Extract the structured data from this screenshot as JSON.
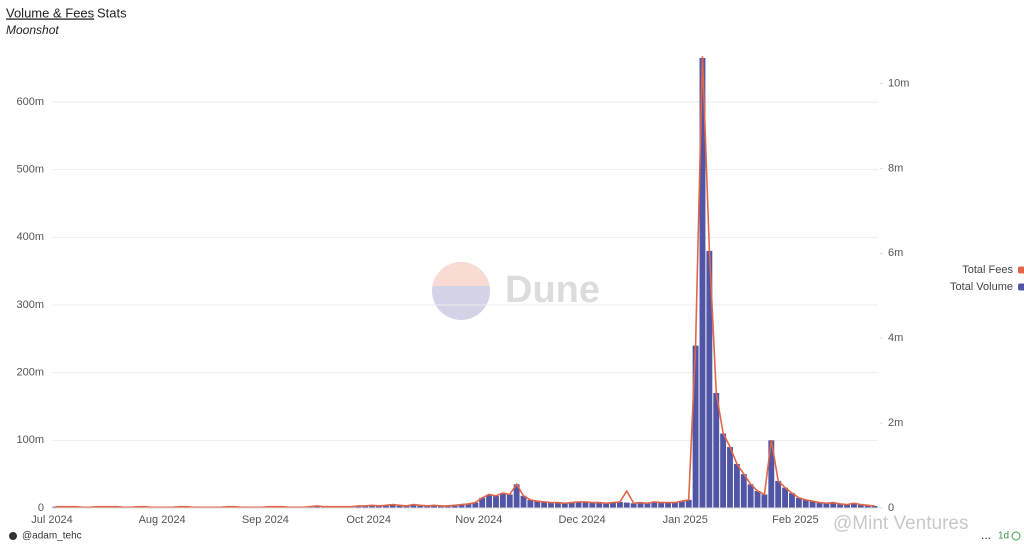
{
  "tabs": [
    "Volume & Fees",
    "Stats"
  ],
  "footer": {
    "author": "@adam_tehc",
    "menu": "...",
    "interval": "1d"
  },
  "watermarks": [
    "Dune",
    "@Mint Ventures"
  ],
  "chart_data": {
    "type": "combo",
    "subtitle": "Moonshot",
    "categories": [
      "Jul 2024",
      null,
      null,
      null,
      null,
      null,
      null,
      null,
      null,
      null,
      null,
      null,
      null,
      null,
      null,
      null,
      "Aug 2024",
      null,
      null,
      null,
      null,
      null,
      null,
      null,
      null,
      null,
      null,
      null,
      null,
      null,
      null,
      "Sep 2024",
      null,
      null,
      null,
      null,
      null,
      null,
      null,
      null,
      null,
      null,
      null,
      null,
      null,
      null,
      "Oct 2024",
      null,
      null,
      null,
      null,
      null,
      null,
      null,
      null,
      null,
      null,
      null,
      null,
      null,
      null,
      null,
      "Nov 2024",
      null,
      null,
      null,
      null,
      null,
      null,
      null,
      null,
      null,
      null,
      null,
      null,
      null,
      null,
      "Dec 2024",
      null,
      null,
      null,
      null,
      null,
      null,
      null,
      null,
      null,
      null,
      null,
      null,
      null,
      null,
      "Jan 2025",
      null,
      null,
      null,
      null,
      null,
      null,
      null,
      null,
      null,
      null,
      null,
      null,
      null,
      null,
      null,
      "Feb 2025",
      null,
      null,
      null,
      null,
      null,
      null,
      null,
      null,
      null,
      null,
      null
    ],
    "series": [
      {
        "name": "Total Fees",
        "type": "line",
        "axis": "y2",
        "color": "#e0664a",
        "values": [
          32000,
          32000,
          32000,
          32000,
          16000,
          16000,
          32000,
          32000,
          32000,
          32000,
          16000,
          16000,
          32000,
          32000,
          16000,
          16000,
          16000,
          16000,
          32000,
          32000,
          16000,
          16000,
          16000,
          16000,
          16000,
          32000,
          32000,
          16000,
          16000,
          16000,
          16000,
          32000,
          32000,
          32000,
          16000,
          16000,
          16000,
          32000,
          48000,
          32000,
          32000,
          32000,
          32000,
          32000,
          48000,
          48000,
          64000,
          48000,
          64000,
          80000,
          64000,
          48000,
          80000,
          64000,
          48000,
          64000,
          48000,
          48000,
          64000,
          80000,
          96000,
          128000,
          240000,
          320000,
          288000,
          352000,
          320000,
          560000,
          288000,
          192000,
          160000,
          144000,
          128000,
          128000,
          112000,
          128000,
          144000,
          144000,
          128000,
          128000,
          112000,
          128000,
          144000,
          400000,
          112000,
          128000,
          112000,
          144000,
          128000,
          128000,
          128000,
          160000,
          192000,
          3840000,
          10640000,
          6080000,
          2720000,
          1760000,
          1440000,
          1040000,
          800000,
          560000,
          400000,
          320000,
          1600000,
          640000,
          480000,
          352000,
          240000,
          192000,
          160000,
          128000,
          112000,
          128000,
          96000,
          80000,
          112000,
          80000,
          64000,
          48000
        ]
      },
      {
        "name": "Total Volume",
        "type": "bar",
        "color": "#5155a6",
        "values": [
          2000000,
          2000000,
          2000000,
          2000000,
          1000000,
          1000000,
          2000000,
          2000000,
          2000000,
          2000000,
          1000000,
          1000000,
          2000000,
          2000000,
          1000000,
          1000000,
          1000000,
          1000000,
          2000000,
          2000000,
          1000000,
          1000000,
          1000000,
          1000000,
          1000000,
          2000000,
          2000000,
          1000000,
          1000000,
          1000000,
          1000000,
          2000000,
          2000000,
          2000000,
          1000000,
          1000000,
          1000000,
          2000000,
          3000000,
          2000000,
          2000000,
          2000000,
          2000000,
          2000000,
          3000000,
          3000000,
          4000000,
          3000000,
          4000000,
          5000000,
          4000000,
          3000000,
          5000000,
          4000000,
          3000000,
          4000000,
          3000000,
          3000000,
          4000000,
          5000000,
          6000000,
          8000000,
          15000000,
          20000000,
          18000000,
          22000000,
          20000000,
          35000000,
          18000000,
          12000000,
          10000000,
          9000000,
          8000000,
          8000000,
          7000000,
          8000000,
          9000000,
          9000000,
          8000000,
          8000000,
          7000000,
          8000000,
          9000000,
          8000000,
          7000000,
          8000000,
          7000000,
          9000000,
          8000000,
          8000000,
          8000000,
          10000000,
          12000000,
          240000000,
          665000000,
          380000000,
          170000000,
          110000000,
          90000000,
          65000000,
          50000000,
          35000000,
          25000000,
          20000000,
          100000000,
          40000000,
          30000000,
          22000000,
          15000000,
          12000000,
          10000000,
          8000000,
          7000000,
          8000000,
          6000000,
          5000000,
          7000000,
          5000000,
          4000000,
          3000000
        ]
      }
    ],
    "ylim": [
      0,
      665000000
    ],
    "yticks": [
      0,
      {
        "value": 100000000,
        "label": "100m"
      },
      {
        "value": 200000000,
        "label": "200m"
      },
      {
        "value": 300000000,
        "label": "300m"
      },
      {
        "value": 400000000,
        "label": "400m"
      },
      {
        "value": 500000000,
        "label": "500m"
      },
      {
        "value": 600000000,
        "label": "600m"
      }
    ],
    "y2lim": [
      0,
      10600000
    ],
    "y2ticks": [
      0,
      {
        "value": 2000000,
        "label": "2m"
      },
      {
        "value": 4000000,
        "label": "4m"
      },
      {
        "value": 6000000,
        "label": "6m"
      },
      {
        "value": 8000000,
        "label": "8m"
      },
      {
        "value": 10000000,
        "label": "10m"
      }
    ],
    "grid": true
  }
}
